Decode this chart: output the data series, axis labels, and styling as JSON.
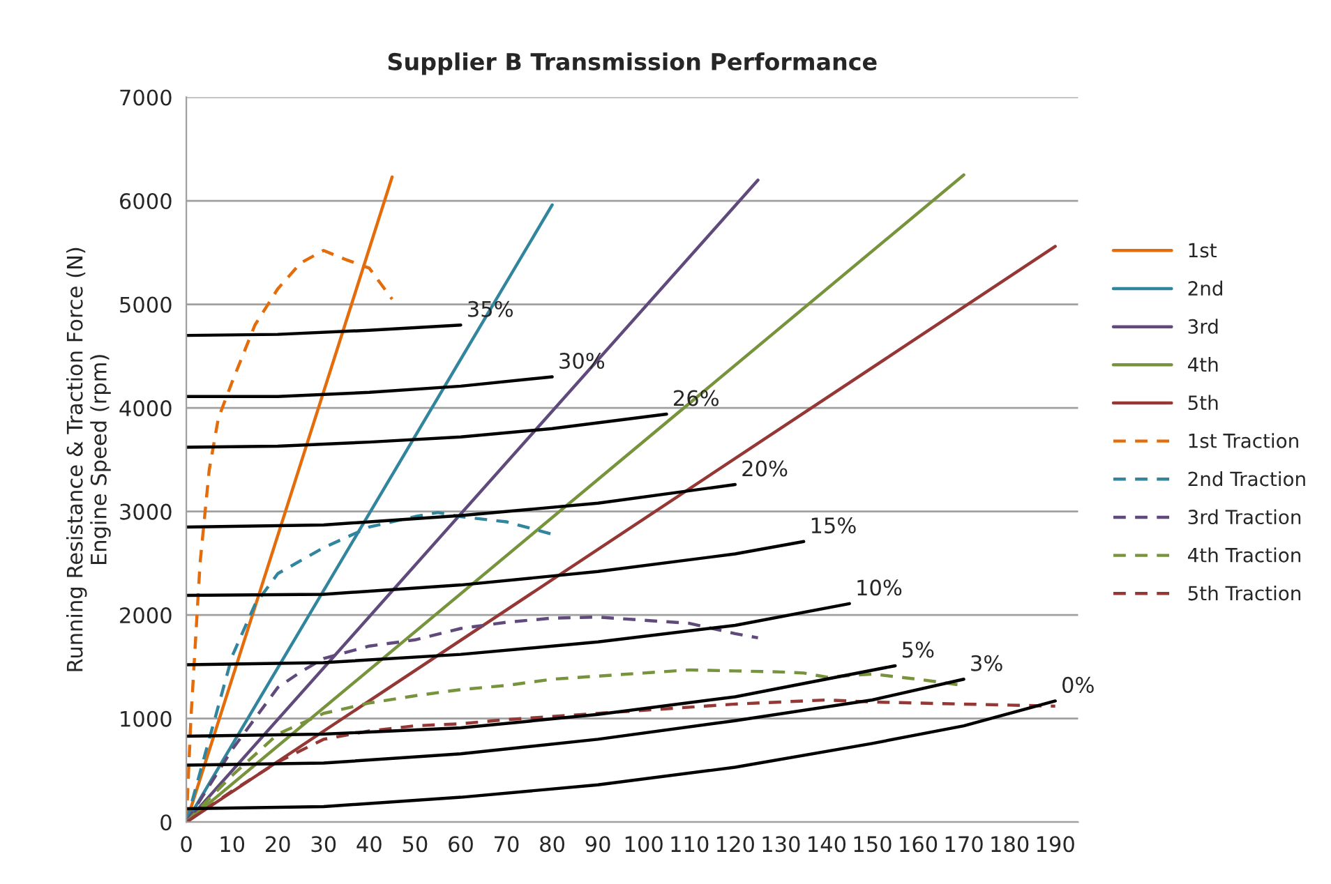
{
  "chart_data": {
    "type": "line",
    "title": "Supplier B Transmission Performance",
    "ylabel": "Running Resistance & Traction Force (N)\nEngine Speed (rpm)",
    "xlim": [
      0,
      195
    ],
    "xticks": [
      0,
      10,
      20,
      30,
      40,
      50,
      60,
      70,
      80,
      90,
      100,
      110,
      120,
      130,
      140,
      150,
      160,
      170,
      180,
      190
    ],
    "ylim": [
      0,
      7000
    ],
    "yticks": [
      0,
      1000,
      2000,
      3000,
      4000,
      5000,
      6000,
      7000
    ],
    "grid": "y",
    "legend": "right",
    "marker": "none",
    "annotations": [
      {
        "text": "35%",
        "x": 60,
        "y": 4800
      },
      {
        "text": "30%",
        "x": 80,
        "y": 4300
      },
      {
        "text": "26%",
        "x": 105,
        "y": 3940
      },
      {
        "text": "20%",
        "x": 120,
        "y": 3260
      },
      {
        "text": "15%",
        "x": 135,
        "y": 2710
      },
      {
        "text": "10%",
        "x": 145,
        "y": 2110
      },
      {
        "text": "5%",
        "x": 155,
        "y": 1510
      },
      {
        "text": "3%",
        "x": 170,
        "y": 1380
      },
      {
        "text": "0%",
        "x": 190,
        "y": 1170
      }
    ],
    "series": [
      {
        "name": "1st",
        "color": "#e46c0a",
        "line_style": "solid",
        "x": [
          0,
          45
        ],
        "values": [
          0,
          6230
        ]
      },
      {
        "name": "2nd",
        "color": "#31859c",
        "line_style": "solid",
        "x": [
          0,
          80
        ],
        "values": [
          0,
          5960
        ]
      },
      {
        "name": "3rd",
        "color": "#604a7b",
        "line_style": "solid",
        "x": [
          0,
          125
        ],
        "values": [
          0,
          6200
        ]
      },
      {
        "name": "4th",
        "color": "#77933c",
        "line_style": "solid",
        "x": [
          0,
          170
        ],
        "values": [
          0,
          6250
        ]
      },
      {
        "name": "5th",
        "color": "#953735",
        "line_style": "solid",
        "x": [
          0,
          190
        ],
        "values": [
          0,
          5560
        ]
      },
      {
        "name": "1st Traction",
        "color": "#e46c0a",
        "line_style": "dashed",
        "x": [
          0,
          1,
          3,
          5,
          7,
          10,
          15,
          20,
          25,
          30,
          35,
          40,
          45
        ],
        "values": [
          0,
          1000,
          2500,
          3400,
          3900,
          4250,
          4800,
          5150,
          5400,
          5520,
          5430,
          5350,
          5050
        ]
      },
      {
        "name": "2nd Traction",
        "color": "#31859c",
        "line_style": "dashed",
        "x": [
          0,
          5,
          10,
          15,
          20,
          30,
          40,
          50,
          55,
          60,
          70,
          80
        ],
        "values": [
          0,
          800,
          1600,
          2100,
          2400,
          2650,
          2850,
          2950,
          2990,
          2950,
          2900,
          2780
        ]
      },
      {
        "name": "3rd Traction",
        "color": "#604a7b",
        "line_style": "dashed",
        "x": [
          0,
          10,
          20,
          25,
          30,
          40,
          50,
          60,
          70,
          80,
          90,
          100,
          110,
          120,
          125
        ],
        "values": [
          0,
          700,
          1300,
          1450,
          1580,
          1700,
          1760,
          1870,
          1930,
          1970,
          1980,
          1950,
          1920,
          1820,
          1780
        ]
      },
      {
        "name": "4th Traction",
        "color": "#77933c",
        "line_style": "dashed",
        "x": [
          0,
          10,
          20,
          30,
          40,
          50,
          60,
          70,
          80,
          90,
          100,
          110,
          120,
          130,
          135,
          140,
          150,
          160,
          170
        ],
        "values": [
          0,
          450,
          850,
          1050,
          1150,
          1220,
          1280,
          1320,
          1380,
          1410,
          1440,
          1470,
          1460,
          1450,
          1440,
          1400,
          1430,
          1380,
          1320
        ]
      },
      {
        "name": "5th Traction",
        "color": "#953735",
        "line_style": "dashed",
        "x": [
          0,
          10,
          20,
          30,
          40,
          50,
          60,
          70,
          80,
          90,
          100,
          110,
          120,
          130,
          140,
          150,
          160,
          170,
          180,
          190
        ],
        "values": [
          0,
          300,
          580,
          800,
          880,
          930,
          950,
          990,
          1020,
          1050,
          1080,
          1110,
          1140,
          1160,
          1180,
          1160,
          1150,
          1140,
          1130,
          1120
        ]
      },
      {
        "color": "#000000",
        "line_style": "solid",
        "x": [
          0,
          20,
          40,
          60
        ],
        "values": [
          4700,
          4710,
          4750,
          4800
        ]
      },
      {
        "color": "#000000",
        "line_style": "solid",
        "x": [
          0,
          20,
          40,
          60,
          80
        ],
        "values": [
          4110,
          4110,
          4150,
          4210,
          4300
        ]
      },
      {
        "color": "#000000",
        "line_style": "solid",
        "x": [
          0,
          20,
          40,
          60,
          80,
          105
        ],
        "values": [
          3620,
          3630,
          3670,
          3720,
          3800,
          3940
        ]
      },
      {
        "color": "#000000",
        "line_style": "solid",
        "x": [
          0,
          30,
          60,
          90,
          120
        ],
        "values": [
          2850,
          2870,
          2960,
          3080,
          3260
        ]
      },
      {
        "color": "#000000",
        "line_style": "solid",
        "x": [
          0,
          30,
          60,
          90,
          120,
          135
        ],
        "values": [
          2190,
          2200,
          2290,
          2420,
          2590,
          2710
        ]
      },
      {
        "color": "#000000",
        "line_style": "solid",
        "x": [
          0,
          30,
          60,
          90,
          120,
          145
        ],
        "values": [
          1520,
          1540,
          1620,
          1740,
          1900,
          2110
        ]
      },
      {
        "color": "#000000",
        "line_style": "solid",
        "x": [
          0,
          30,
          60,
          90,
          120,
          155
        ],
        "values": [
          830,
          850,
          910,
          1040,
          1210,
          1510
        ]
      },
      {
        "color": "#000000",
        "line_style": "solid",
        "x": [
          0,
          30,
          60,
          90,
          120,
          150,
          170
        ],
        "values": [
          550,
          570,
          660,
          800,
          980,
          1180,
          1380
        ]
      },
      {
        "color": "#000000",
        "line_style": "solid",
        "x": [
          0,
          30,
          60,
          90,
          120,
          150,
          170,
          190
        ],
        "values": [
          130,
          150,
          240,
          360,
          530,
          760,
          930,
          1170
        ]
      }
    ]
  }
}
